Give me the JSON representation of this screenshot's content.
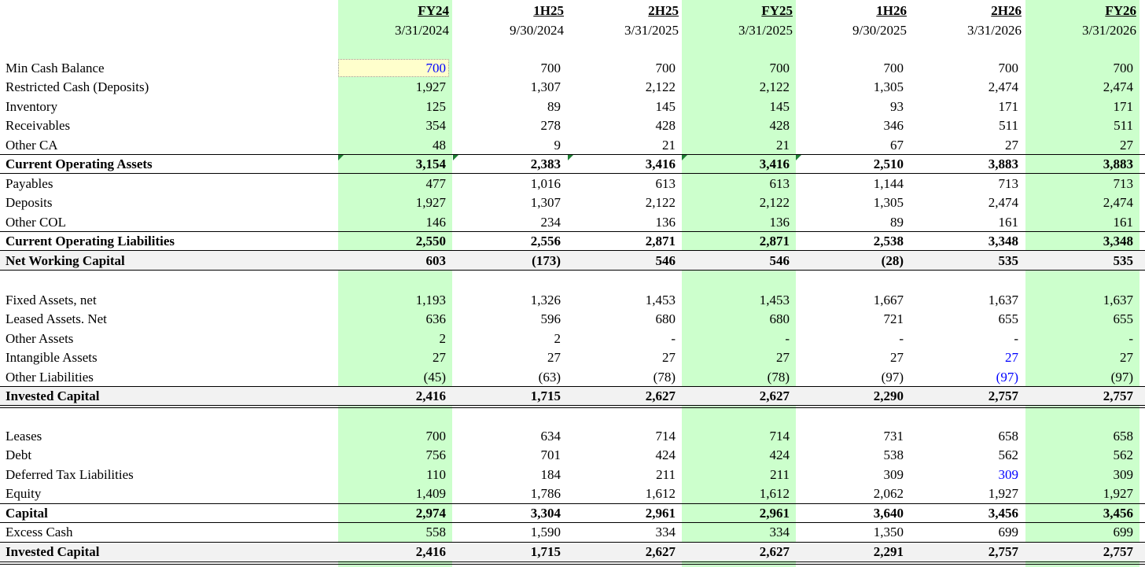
{
  "columns": [
    {
      "label": "FY24",
      "date": "3/31/2024"
    },
    {
      "label": "1H25",
      "date": "9/30/2024"
    },
    {
      "label": "2H25",
      "date": "3/31/2025"
    },
    {
      "label": "FY25",
      "date": "3/31/2025"
    },
    {
      "label": "1H26",
      "date": "9/30/2025"
    },
    {
      "label": "2H26",
      "date": "3/31/2026"
    },
    {
      "label": "FY26",
      "date": "3/31/2026"
    }
  ],
  "rows": [
    {
      "label": "Min Cash Balance",
      "values": [
        "700",
        "700",
        "700",
        "700",
        "700",
        "700",
        "700"
      ]
    },
    {
      "label": "Restricted Cash (Deposits)",
      "values": [
        "1,927",
        "1,307",
        "2,122",
        "2,122",
        "1,305",
        "2,474",
        "2,474"
      ]
    },
    {
      "label": "Inventory",
      "values": [
        "125",
        "89",
        "145",
        "145",
        "93",
        "171",
        "171"
      ]
    },
    {
      "label": "Receivables",
      "values": [
        "354",
        "278",
        "428",
        "428",
        "346",
        "511",
        "511"
      ]
    },
    {
      "label": "Other CA",
      "values": [
        "48",
        "9",
        "21",
        "21",
        "67",
        "27",
        "27"
      ]
    },
    {
      "label": "Current Operating Assets",
      "values": [
        "3,154",
        "2,383",
        "3,416",
        "3,416",
        "2,510",
        "3,883",
        "3,883"
      ]
    },
    {
      "label": "Payables",
      "values": [
        "477",
        "1,016",
        "613",
        "613",
        "1,144",
        "713",
        "713"
      ]
    },
    {
      "label": "Deposits",
      "values": [
        "1,927",
        "1,307",
        "2,122",
        "2,122",
        "1,305",
        "2,474",
        "2,474"
      ]
    },
    {
      "label": "Other COL",
      "values": [
        "146",
        "234",
        "136",
        "136",
        "89",
        "161",
        "161"
      ]
    },
    {
      "label": "Current Operating Liabilities",
      "values": [
        "2,550",
        "2,556",
        "2,871",
        "2,871",
        "2,538",
        "3,348",
        "3,348"
      ]
    },
    {
      "label": "Net Working Capital",
      "values": [
        "603",
        "(173)",
        "546",
        "546",
        "(28)",
        "535",
        "535"
      ]
    },
    {
      "label": "Fixed Assets, net",
      "values": [
        "1,193",
        "1,326",
        "1,453",
        "1,453",
        "1,667",
        "1,637",
        "1,637"
      ]
    },
    {
      "label": "Leased Assets. Net",
      "values": [
        "636",
        "596",
        "680",
        "680",
        "721",
        "655",
        "655"
      ]
    },
    {
      "label": "Other Assets",
      "values": [
        "2",
        "2",
        "-",
        "-",
        "-",
        "-",
        "-"
      ]
    },
    {
      "label": "Intangible Assets",
      "values": [
        "27",
        "27",
        "27",
        "27",
        "27",
        "27",
        "27"
      ]
    },
    {
      "label": "Other Liabilities",
      "values": [
        "(45)",
        "(63)",
        "(78)",
        "(78)",
        "(97)",
        "(97)",
        "(97)"
      ]
    },
    {
      "label": "Invested Capital",
      "values": [
        "2,416",
        "1,715",
        "2,627",
        "2,627",
        "2,290",
        "2,757",
        "2,757"
      ]
    },
    {
      "label": "Leases",
      "values": [
        "700",
        "634",
        "714",
        "714",
        "731",
        "658",
        "658"
      ]
    },
    {
      "label": "Debt",
      "values": [
        "756",
        "701",
        "424",
        "424",
        "538",
        "562",
        "562"
      ]
    },
    {
      "label": "Deferred Tax Liabilities",
      "values": [
        "110",
        "184",
        "211",
        "211",
        "309",
        "309",
        "309"
      ]
    },
    {
      "label": "Equity",
      "values": [
        "1,409",
        "1,786",
        "1,612",
        "1,612",
        "2,062",
        "1,927",
        "1,927"
      ]
    },
    {
      "label": "Capital",
      "values": [
        "2,974",
        "3,304",
        "2,961",
        "2,961",
        "3,640",
        "3,456",
        "3,456"
      ]
    },
    {
      "label": "Excess Cash",
      "values": [
        "558",
        "1,590",
        "334",
        "334",
        "1,350",
        "699",
        "699"
      ]
    },
    {
      "label": "Invested Capital",
      "values": [
        "2,416",
        "1,715",
        "2,627",
        "2,627",
        "2,291",
        "2,757",
        "2,757"
      ]
    }
  ],
  "colors": {
    "fy_column_fill": "#ccffcc",
    "input_fill": "#ffffcc",
    "input_text": "#0000ff",
    "total_row_fill": "#f2f2f2"
  }
}
